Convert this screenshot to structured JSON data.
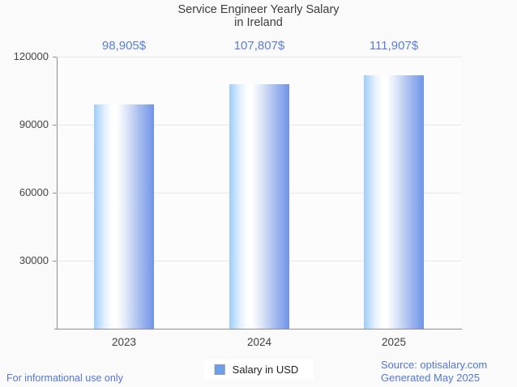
{
  "title_lines": [
    "Service Engineer Yearly Salary",
    "in Ireland"
  ],
  "chart_data": {
    "type": "bar",
    "title": "Service Engineer Yearly Salary in Ireland",
    "categories": [
      "2023",
      "2024",
      "2025"
    ],
    "series": [
      {
        "name": "Salary in USD",
        "values": [
          98905,
          107807,
          111907
        ]
      }
    ],
    "value_labels": [
      "98,905$",
      "107,807$",
      "111,907$"
    ],
    "ylim": [
      0,
      120000
    ],
    "yticks": [
      30000,
      60000,
      90000,
      120000
    ],
    "ytick_labels": [
      "30000",
      "60000",
      "90000",
      "120000"
    ],
    "grid": true,
    "legend": {
      "label": "Salary in USD",
      "position": "bottom"
    }
  },
  "footer": {
    "disclaimer": "For informational use only",
    "source": "Source: optisalary.com",
    "generated": "Generated May 2025"
  },
  "colors": {
    "background": "#fafafa",
    "title_text": "#3d3d3d",
    "axis_text": "#444444",
    "axis_line": "#8f8f8f",
    "gridline": "#e7e7e7",
    "value_label": "#5a7ed7",
    "footer_text": "#5577d5",
    "legend_swatch": "#6d9eeb",
    "bar_gradient": [
      "#9ecdf8 0%",
      "#e3f0fe 18%",
      "#ffffff 31%",
      "#ffffff 38%",
      "#dbe4f7 55%",
      "#a9bef0 75%",
      "#6f94e8 100%"
    ]
  }
}
